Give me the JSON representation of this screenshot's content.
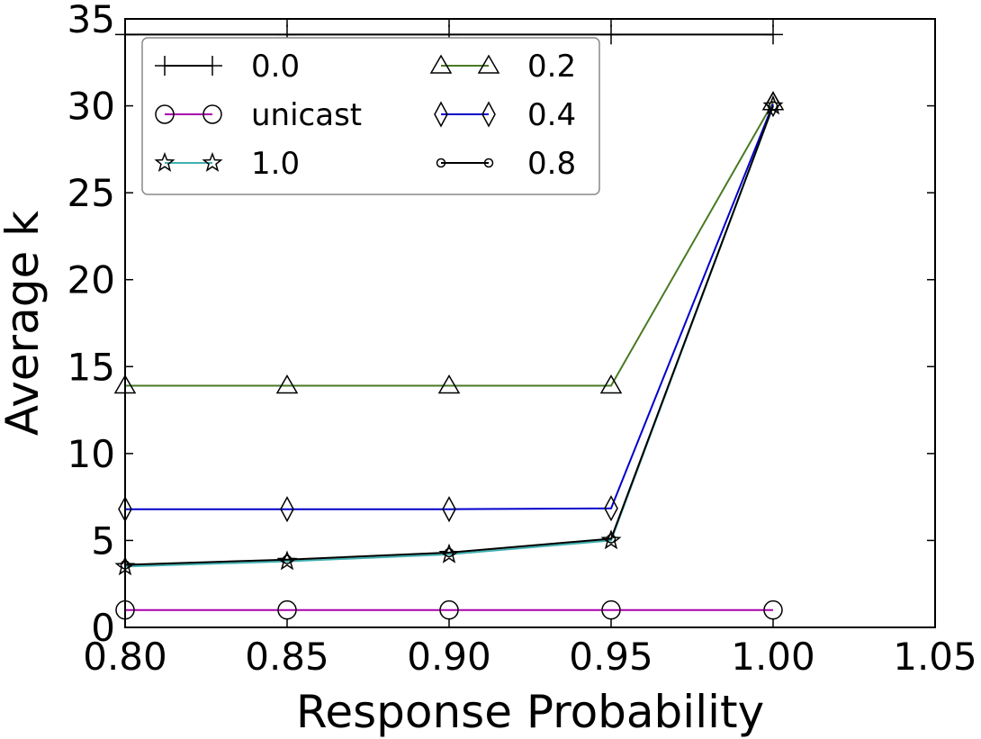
{
  "chart_data": {
    "type": "line",
    "xlabel": "Response Probability",
    "ylabel": "Average k",
    "xlim": [
      0.8,
      1.05
    ],
    "ylim": [
      0,
      35
    ],
    "xticks": [
      "0.80",
      "0.85",
      "0.90",
      "0.95",
      "1.00",
      "1.05"
    ],
    "yticks": [
      "0",
      "5",
      "10",
      "15",
      "20",
      "25",
      "30",
      "35"
    ],
    "grid": false,
    "legend_position": "top-left",
    "x": [
      0.8,
      0.85,
      0.9,
      0.95,
      1.0
    ],
    "series": [
      {
        "name": "0.0",
        "color": "#000000",
        "marker": "plus",
        "values": [
          34.1,
          34.1,
          34.1,
          34.1,
          34.1
        ]
      },
      {
        "name": "0.2",
        "color": "#4a7a23",
        "marker": "triangle",
        "values": [
          13.9,
          13.9,
          13.9,
          13.9,
          30.2
        ]
      },
      {
        "name": "unicast",
        "color": "#aa00aa",
        "marker": "circle",
        "values": [
          1.0,
          1.0,
          1.0,
          1.0,
          1.0
        ]
      },
      {
        "name": "0.4",
        "color": "#0000cc",
        "marker": "diamond",
        "values": [
          6.8,
          6.8,
          6.8,
          6.85,
          30.1
        ]
      },
      {
        "name": "1.0",
        "color": "#40b0b0",
        "marker": "star",
        "values": [
          3.5,
          3.8,
          4.2,
          5.0,
          30.0
        ]
      },
      {
        "name": "0.8",
        "color": "#000000",
        "marker": "smallcircle",
        "values": [
          3.6,
          3.9,
          4.3,
          5.1,
          30.0
        ]
      }
    ]
  }
}
